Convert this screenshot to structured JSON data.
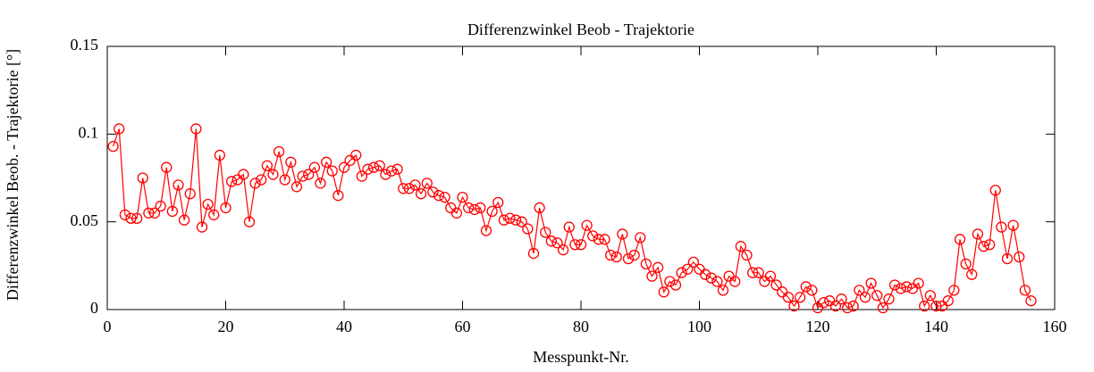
{
  "chart_data": {
    "type": "line",
    "title": "Differenzwinkel Beob - Trajektorie",
    "x_label": "Messpunkt-Nr.",
    "y_label": "Differenzwinkel Beob. - Trajektorie [°]",
    "color": "#ff0000",
    "x": [
      1,
      2,
      3,
      4,
      5,
      6,
      7,
      8,
      9,
      10,
      11,
      12,
      13,
      14,
      15,
      16,
      17,
      18,
      19,
      20,
      21,
      22,
      23,
      24,
      25,
      26,
      27,
      28,
      29,
      30,
      31,
      32,
      33,
      34,
      35,
      36,
      37,
      38,
      39,
      40,
      41,
      42,
      43,
      44,
      45,
      46,
      47,
      48,
      49,
      50,
      51,
      52,
      53,
      54,
      55,
      56,
      57,
      58,
      59,
      60,
      61,
      62,
      63,
      64,
      65,
      66,
      67,
      68,
      69,
      70,
      71,
      72,
      73,
      74,
      75,
      76,
      77,
      78,
      79,
      80,
      81,
      82,
      83,
      84,
      85,
      86,
      87,
      88,
      89,
      90,
      91,
      92,
      93,
      94,
      95,
      96,
      97,
      98,
      99,
      100,
      101,
      102,
      103,
      104,
      105,
      106,
      107,
      108,
      109,
      110,
      111,
      112,
      113,
      114,
      115,
      116,
      117,
      118,
      119,
      120,
      121,
      122,
      123,
      124,
      125,
      126,
      127,
      128,
      129,
      130,
      131,
      132,
      133,
      134,
      135,
      136,
      137,
      138,
      139,
      140,
      141,
      142,
      143,
      144,
      145,
      146,
      147,
      148,
      149,
      150,
      151,
      152,
      153,
      154,
      155,
      156
    ],
    "values": [
      0.093,
      0.103,
      0.054,
      0.052,
      0.052,
      0.075,
      0.055,
      0.055,
      0.059,
      0.081,
      0.056,
      0.071,
      0.051,
      0.066,
      0.103,
      0.047,
      0.06,
      0.054,
      0.088,
      0.058,
      0.073,
      0.074,
      0.077,
      0.05,
      0.072,
      0.074,
      0.082,
      0.077,
      0.09,
      0.074,
      0.084,
      0.07,
      0.076,
      0.077,
      0.081,
      0.072,
      0.084,
      0.079,
      0.065,
      0.081,
      0.085,
      0.088,
      0.076,
      0.08,
      0.081,
      0.082,
      0.077,
      0.079,
      0.08,
      0.069,
      0.069,
      0.071,
      0.066,
      0.072,
      0.067,
      0.065,
      0.064,
      0.058,
      0.055,
      0.064,
      0.058,
      0.057,
      0.058,
      0.045,
      0.056,
      0.061,
      0.051,
      0.052,
      0.051,
      0.05,
      0.046,
      0.032,
      0.058,
      0.044,
      0.039,
      0.038,
      0.034,
      0.047,
      0.037,
      0.037,
      0.048,
      0.042,
      0.04,
      0.04,
      0.031,
      0.03,
      0.043,
      0.029,
      0.031,
      0.041,
      0.026,
      0.019,
      0.024,
      0.01,
      0.016,
      0.014,
      0.021,
      0.023,
      0.027,
      0.023,
      0.02,
      0.018,
      0.016,
      0.011,
      0.019,
      0.016,
      0.036,
      0.031,
      0.021,
      0.021,
      0.016,
      0.019,
      0.014,
      0.01,
      0.007,
      0.002,
      0.007,
      0.013,
      0.011,
      0.001,
      0.004,
      0.005,
      0.002,
      0.006,
      0.001,
      0.002,
      0.011,
      0.007,
      0.015,
      0.008,
      0.001,
      0.006,
      0.014,
      0.012,
      0.013,
      0.012,
      0.015,
      0.002,
      0.008,
      0.002,
      0.002,
      0.005,
      0.011,
      0.04,
      0.026,
      0.02,
      0.043,
      0.036,
      0.037,
      0.068,
      0.047,
      0.029,
      0.048,
      0.03,
      0.011,
      0.005
    ],
    "xlim": [
      0,
      160
    ],
    "xticks": [
      0,
      20,
      40,
      60,
      80,
      100,
      120,
      140,
      160
    ],
    "ylim": [
      0,
      0.15
    ],
    "yticks": [
      0,
      0.05,
      0.1,
      0.15
    ]
  }
}
